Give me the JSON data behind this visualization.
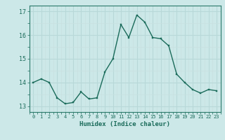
{
  "x": [
    0,
    1,
    2,
    3,
    4,
    5,
    6,
    7,
    8,
    9,
    10,
    11,
    12,
    13,
    14,
    15,
    16,
    17,
    18,
    19,
    20,
    21,
    22,
    23
  ],
  "y": [
    14.0,
    14.15,
    14.0,
    13.35,
    13.1,
    13.15,
    13.6,
    13.3,
    13.35,
    14.45,
    15.0,
    16.45,
    15.9,
    16.85,
    16.55,
    15.9,
    15.85,
    15.55,
    14.35,
    14.0,
    13.7,
    13.55,
    13.7,
    13.65
  ],
  "bg_color": "#cce8e8",
  "line_color": "#1a6b5a",
  "marker_color": "#1a6b5a",
  "xlabel": "Humidex (Indice chaleur)",
  "ylim": [
    12.75,
    17.25
  ],
  "xlim": [
    -0.5,
    23.5
  ],
  "yticks": [
    13,
    14,
    15,
    16,
    17
  ],
  "xticks": [
    0,
    1,
    2,
    3,
    4,
    5,
    6,
    7,
    8,
    9,
    10,
    11,
    12,
    13,
    14,
    15,
    16,
    17,
    18,
    19,
    20,
    21,
    22,
    23
  ],
  "xtick_labels": [
    "0",
    "1",
    "2",
    "3",
    "4",
    "5",
    "6",
    "7",
    "8",
    "9",
    "10",
    "11",
    "12",
    "13",
    "14",
    "15",
    "16",
    "17",
    "18",
    "19",
    "20",
    "21",
    "22",
    "23"
  ],
  "major_grid_color": "#b8d8d8",
  "minor_grid_color": "#c8e0e0",
  "spine_color": "#2a7a6a"
}
